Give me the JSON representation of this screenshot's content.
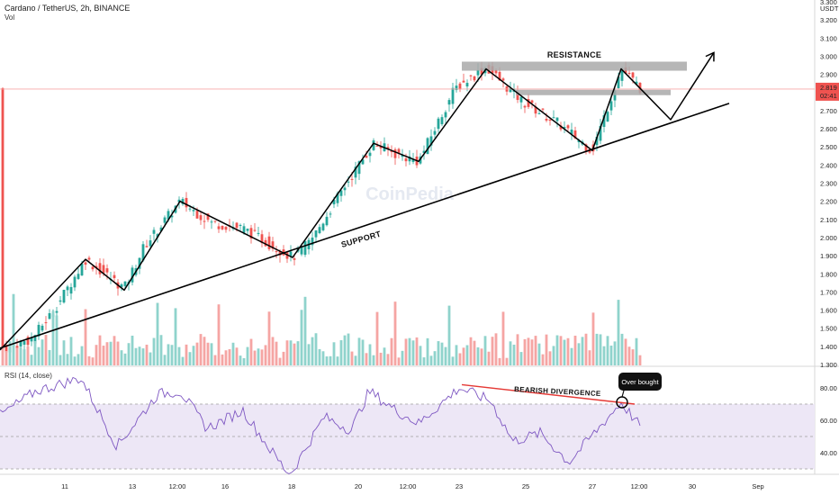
{
  "header": {
    "title": "Cardano / TetherUS, 2h, BINANCE",
    "vol_label": "Vol",
    "rsi_label": "RSI (14, close)"
  },
  "price_axis": {
    "unit": "USDT",
    "ticks": [
      "3.300",
      "3.200",
      "3.100",
      "3.000",
      "2.900",
      "2.700",
      "2.600",
      "2.500",
      "2.400",
      "2.300",
      "2.200",
      "2.100",
      "2.000",
      "1.900",
      "1.800",
      "1.700",
      "1.600",
      "1.500",
      "1.400",
      "1.300"
    ],
    "current_price": "2.819",
    "countdown": "02:41"
  },
  "rsi_axis": {
    "ticks": [
      "80.00",
      "60.00",
      "40.00"
    ]
  },
  "time_axis": {
    "ticks": [
      "11",
      "13",
      "12:00",
      "16",
      "18",
      "20",
      "12:00",
      "23",
      "25",
      "27",
      "12:00",
      "30",
      "Sep"
    ]
  },
  "annotations": {
    "resistance": "RESISTANCE",
    "support": "SUPPORT",
    "bearish_divergence": "BEARISH DIVERGENCE",
    "overbought": "Over bought"
  },
  "watermark": "CoinPedia",
  "colors": {
    "up": "#26a69a",
    "down": "#ef5350",
    "vol_up": "#8fd3cc",
    "vol_down": "#f5a5a3",
    "rsi_line": "#7e57c2",
    "rsi_band": "#ede7f6",
    "resistance_zone": "#a9a9a9",
    "price_line": "#f7a8a8",
    "price_badge": "#ef5350"
  },
  "chart_data": {
    "type": "candlestick",
    "title": "Cardano / TetherUS, 2h, BINANCE",
    "pair": "ADA/USDT",
    "timeframe": "2h",
    "ylim": [
      1.3,
      3.3
    ],
    "rsi_ylim": [
      25,
      88
    ],
    "rsi_levels": [
      70,
      50,
      30
    ],
    "current_price": 2.819,
    "price_path": [
      {
        "t": 0,
        "p": 1.38
      },
      {
        "t": 35,
        "p": 1.44
      },
      {
        "t": 60,
        "p": 1.6
      },
      {
        "t": 95,
        "p": 1.88
      },
      {
        "t": 138,
        "p": 1.72
      },
      {
        "t": 160,
        "p": 1.95
      },
      {
        "t": 200,
        "p": 2.2
      },
      {
        "t": 235,
        "p": 2.08
      },
      {
        "t": 270,
        "p": 2.05
      },
      {
        "t": 325,
        "p": 1.89
      },
      {
        "t": 345,
        "p": 1.98
      },
      {
        "t": 385,
        "p": 2.3
      },
      {
        "t": 415,
        "p": 2.52
      },
      {
        "t": 440,
        "p": 2.46
      },
      {
        "t": 465,
        "p": 2.42
      },
      {
        "t": 505,
        "p": 2.82
      },
      {
        "t": 540,
        "p": 2.94
      },
      {
        "t": 580,
        "p": 2.75
      },
      {
        "t": 620,
        "p": 2.63
      },
      {
        "t": 658,
        "p": 2.48
      },
      {
        "t": 690,
        "p": 2.93
      },
      {
        "t": 712,
        "p": 2.82
      }
    ],
    "rsi_path": [
      {
        "t": 0,
        "p": 63
      },
      {
        "t": 40,
        "p": 78
      },
      {
        "t": 90,
        "p": 86
      },
      {
        "t": 130,
        "p": 44
      },
      {
        "t": 175,
        "p": 76
      },
      {
        "t": 200,
        "p": 78
      },
      {
        "t": 230,
        "p": 55
      },
      {
        "t": 270,
        "p": 66
      },
      {
        "t": 300,
        "p": 42
      },
      {
        "t": 322,
        "p": 26
      },
      {
        "t": 360,
        "p": 62
      },
      {
        "t": 390,
        "p": 54
      },
      {
        "t": 410,
        "p": 78
      },
      {
        "t": 440,
        "p": 66
      },
      {
        "t": 465,
        "p": 58
      },
      {
        "t": 510,
        "p": 80
      },
      {
        "t": 545,
        "p": 72
      },
      {
        "t": 570,
        "p": 47
      },
      {
        "t": 600,
        "p": 52
      },
      {
        "t": 632,
        "p": 34
      },
      {
        "t": 660,
        "p": 52
      },
      {
        "t": 690,
        "p": 71
      },
      {
        "t": 710,
        "p": 57
      }
    ],
    "support_line": {
      "from": {
        "t": 0,
        "p": 1.39
      },
      "to": {
        "t": 810,
        "p": 2.74
      }
    },
    "resistance_zone": {
      "from_t": 513,
      "to_t": 763,
      "low": 2.93,
      "high": 2.96
    },
    "resistance_zone_2": {
      "from_t": 573,
      "to_t": 745,
      "low": 2.79,
      "high": 2.81
    },
    "pattern_line": [
      {
        "t": 0,
        "p": 1.38
      },
      {
        "t": 95,
        "p": 1.88
      },
      {
        "t": 138,
        "p": 1.71
      },
      {
        "t": 200,
        "p": 2.2
      },
      {
        "t": 325,
        "p": 1.89
      },
      {
        "t": 415,
        "p": 2.52
      },
      {
        "t": 465,
        "p": 2.42
      },
      {
        "t": 540,
        "p": 2.93
      },
      {
        "t": 658,
        "p": 2.48
      },
      {
        "t": 690,
        "p": 2.93
      },
      {
        "t": 745,
        "p": 2.65
      },
      {
        "t": 793,
        "p": 3.02
      }
    ],
    "divergence_line": {
      "from": {
        "t": 513,
        "p": 82
      },
      "to": {
        "t": 705,
        "p": 70
      }
    },
    "time_ticks": [
      {
        "label": "11",
        "t": 72
      },
      {
        "label": "13",
        "t": 147
      },
      {
        "label": "12:00",
        "t": 197
      },
      {
        "label": "16",
        "t": 250
      },
      {
        "label": "18",
        "t": 324
      },
      {
        "label": "20",
        "t": 398
      },
      {
        "label": "12:00",
        "t": 453
      },
      {
        "label": "23",
        "t": 510
      },
      {
        "label": "25",
        "t": 584
      },
      {
        "label": "27",
        "t": 658
      },
      {
        "label": "12:00",
        "t": 710
      },
      {
        "label": "30",
        "t": 769
      },
      {
        "label": "Sep",
        "t": 842
      }
    ]
  }
}
